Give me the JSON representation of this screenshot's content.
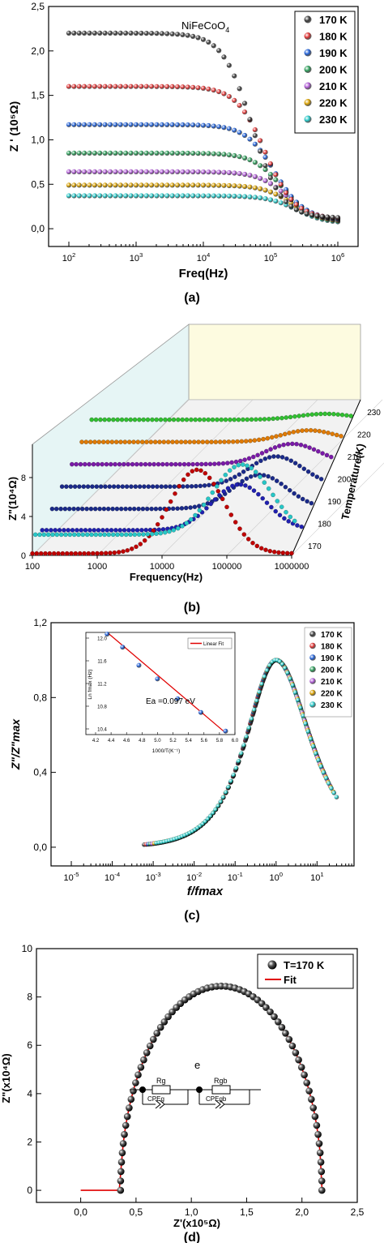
{
  "colors": {
    "170": "#3a3a3a",
    "180": "#e03434",
    "190": "#1f5fd6",
    "200": "#2e9e5b",
    "210": "#b05cd6",
    "220": "#d9a000",
    "230": "#27c7c7",
    "fit": "#e00000",
    "navy": "#1a2a8a",
    "darkred": "#c00000",
    "blue3d": "#2020b0",
    "purple3d": "#7a1aa8",
    "orange3d": "#e07a00",
    "green3d": "#30c030"
  },
  "panel_a": {
    "caption": "(a)",
    "annotation": "NiFeCoO4",
    "annotation_main": "NiFeCoO",
    "annotation_sub": "4",
    "ylabel": "Z ' (10⁵Ω)",
    "xlabel": "Freq(Hz)",
    "yticks": [
      "0,0",
      "0,5",
      "1,0",
      "1,5",
      "2,0",
      "2,5"
    ],
    "xticks": [
      {
        "base": "10",
        "exp": "2"
      },
      {
        "base": "10",
        "exp": "3"
      },
      {
        "base": "10",
        "exp": "4"
      },
      {
        "base": "10",
        "exp": "5"
      },
      {
        "base": "10",
        "exp": "6"
      }
    ],
    "legend": [
      "170 K",
      "180 K",
      "190 K",
      "200 K",
      "210 K",
      "220 K",
      "230 K"
    ]
  },
  "panel_b": {
    "caption": "(b)",
    "ylabel": "Z\"(10⁴Ω)",
    "xlabel": "Frequency(Hz)",
    "zlabel": "Temperature(K)",
    "zticks": [
      "0",
      "4",
      "8"
    ],
    "xticks": [
      "100",
      "1000",
      "10000",
      "100000",
      "1000000"
    ],
    "tticks": [
      "170",
      "180",
      "190",
      "200",
      "210",
      "220",
      "230"
    ]
  },
  "panel_c": {
    "caption": "(c)",
    "ylabel": "Z\"/Z\"max",
    "xlabel": "f/fmax",
    "yticks": [
      "0,0",
      "0,4",
      "0,8",
      "1,2"
    ],
    "xticks": [
      {
        "base": "10",
        "exp": "-5"
      },
      {
        "base": "10",
        "exp": "-4"
      },
      {
        "base": "10",
        "exp": "-3"
      },
      {
        "base": "10",
        "exp": "-2"
      },
      {
        "base": "10",
        "exp": "-1"
      },
      {
        "base": "10",
        "exp": "0"
      },
      {
        "base": "10",
        "exp": "1"
      }
    ],
    "legend": [
      "170 K",
      "180 K",
      "190 K",
      "200 K",
      "210 K",
      "220 K",
      "230 K"
    ],
    "inset": {
      "legend": "Linear Fit",
      "ylabel": "Ln fmax (Hz)",
      "xlabel": "1000/T(K⁻¹)",
      "annotation": "Ea =0.097 eV",
      "yticks": [
        "10.4",
        "10.8",
        "11.2",
        "11.6",
        "12.0"
      ],
      "xticks": [
        "4.2",
        "4.4",
        "4.6",
        "4.8",
        "5.0",
        "5.2",
        "5.4",
        "5.6",
        "5.8",
        "6.0"
      ]
    }
  },
  "panel_d": {
    "caption": "(d)",
    "ylabel": "Z\"(x10⁴Ω)",
    "xlabel": "Z'(x10⁵Ω)",
    "yticks": [
      "0",
      "2",
      "4",
      "6",
      "8",
      "10"
    ],
    "xticks": [
      "0,0",
      "0,5",
      "1,0",
      "1,5",
      "2,0",
      "2,5"
    ],
    "legend": [
      "T=170 K",
      "Fit"
    ],
    "letter": "e",
    "circuit": [
      "Rg",
      "CPEg",
      "Rgb",
      "CPEgb"
    ]
  },
  "chart_data": [
    {
      "type": "scatter",
      "title": "NiFeCoO4",
      "xlabel": "Freq(Hz)",
      "ylabel": "Z ' (10^5 Ω)",
      "xscale": "log",
      "xlim": [
        50,
        2000000
      ],
      "ylim": [
        -0.2,
        2.5
      ],
      "legend_position": "top-right",
      "series": [
        {
          "name": "170 K",
          "plateau": 2.2,
          "f_c": 50000,
          "high": 0.12
        },
        {
          "name": "180 K",
          "plateau": 1.6,
          "f_c": 80000,
          "high": 0.11
        },
        {
          "name": "190 K",
          "plateau": 1.17,
          "f_c": 110000,
          "high": 0.1
        },
        {
          "name": "200 K",
          "plateau": 0.85,
          "f_c": 140000,
          "high": 0.09
        },
        {
          "name": "210 K",
          "plateau": 0.64,
          "f_c": 170000,
          "high": 0.08
        },
        {
          "name": "220 K",
          "plateau": 0.49,
          "f_c": 200000,
          "high": 0.07
        },
        {
          "name": "230 K",
          "plateau": 0.37,
          "f_c": 230000,
          "high": 0.06
        }
      ]
    },
    {
      "type": "line",
      "title": "",
      "xlabel": "Frequency(Hz)",
      "ylabel": "Z\"(10^4 Ω)",
      "zlabel": "Temperature(K)",
      "xscale": "log",
      "xlim": [
        100,
        1000000
      ],
      "ylim": [
        0,
        10
      ],
      "series": [
        {
          "name": "170",
          "peak_freq": 35000,
          "peak": 8.8,
          "low": 0.2
        },
        {
          "name": "180",
          "peak_freq": 110000,
          "peak": 5.0,
          "low": 0.3
        },
        {
          "name": "190",
          "peak_freq": 160000,
          "peak": 3.7,
          "low": 0.2
        },
        {
          "name": "200",
          "peak_freq": 200000,
          "peak": 3.3,
          "low": 0.2
        },
        {
          "name": "210",
          "peak_freq": 250000,
          "peak": 2.3,
          "low": 0.2
        },
        {
          "name": "220",
          "peak_freq": 320000,
          "peak": 1.4,
          "low": 0.2
        },
        {
          "name": "230",
          "peak_freq": 400000,
          "peak": 0.8,
          "low": 0.2
        }
      ]
    },
    {
      "type": "scatter",
      "title": "",
      "xlabel": "f/fmax",
      "ylabel": "Z\"/Z\"max",
      "xscale": "log",
      "xlim": [
        3.2e-06,
        80
      ],
      "ylim": [
        -0.1,
        1.2
      ],
      "legend_position": "top-right",
      "x_range_data": [
        0.0006,
        30
      ],
      "series": [
        "170 K",
        "180 K",
        "190 K",
        "200 K",
        "210 K",
        "220 K",
        "230 K"
      ],
      "inset": {
        "type": "scatter",
        "xlabel": "1000/T(K-1)",
        "ylabel": "Ln fmax (Hz)",
        "xlim": [
          4.2,
          6.0
        ],
        "ylim": [
          10.3,
          12.1
        ],
        "x": [
          4.35,
          4.55,
          4.76,
          5.0,
          5.26,
          5.56,
          5.88
        ],
        "y": [
          12.07,
          11.84,
          11.52,
          11.28,
          10.93,
          10.69,
          10.36
        ],
        "fit": {
          "name": "Linear Fit",
          "x": [
            4.35,
            5.88
          ],
          "y": [
            12.1,
            10.33
          ]
        },
        "annotation": "Ea =0.097 eV"
      }
    },
    {
      "type": "scatter",
      "title": "",
      "xlabel": "Z'(x10^5 Ω)",
      "ylabel": "Z\"(x10^4 Ω)",
      "xlim": [
        -0.4,
        2.5
      ],
      "ylim": [
        -0.5,
        10
      ],
      "legend_position": "top-right",
      "series": [
        {
          "name": "T=170 K",
          "center": 1.27,
          "radius_x": 0.91,
          "peak": 8.45,
          "x_min": 0.11,
          "x_max": 2.2
        },
        {
          "name": "Fit",
          "x_min": 0.0,
          "x_max": 2.2
        }
      ]
    }
  ]
}
